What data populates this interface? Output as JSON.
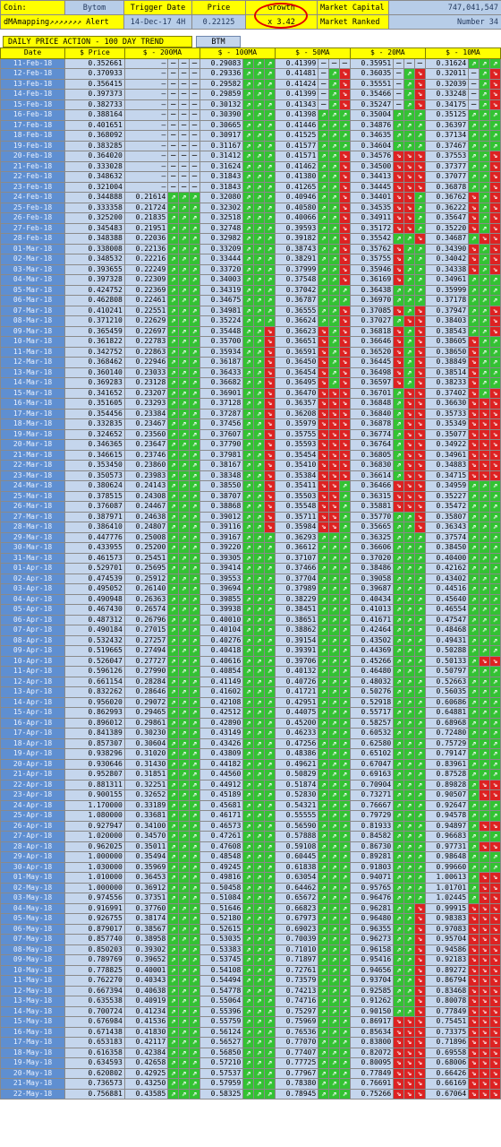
{
  "header": {
    "coin_label": "Coin:",
    "coin_value": "Bytom",
    "trigger_label": "Trigger Date",
    "trigger_value": "14-Dec-17 4H",
    "price_label": "Price",
    "price_value": "0.22125",
    "growth_label": "Growth",
    "growth_value": "x 3.42",
    "mcap_label": "Market Capital",
    "mcap_value": "747,041,547",
    "brand": "dMAmapping↗↗↗↗↗↗↗ Alert",
    "ranked_label": "Market Ranked",
    "ranked_value": "Number 34"
  },
  "section_title": "DAILY PRICE ACTION - 100 DAY TREND",
  "btm_tab": "BTM",
  "columns": [
    "Date",
    "$ Price",
    "$ - 200MA",
    "$ - 100MA",
    "$ - 50MA",
    "$ - 20MA",
    "$ - 10MA"
  ],
  "arrow_legend": {
    "u": "⇗",
    "d": "⇘",
    "n": "–"
  },
  "row_codes": "each row: [date, price, ma200, ma100, ma50, ma20, ma10, arrow-codes]; arrow-codes has 3 letters per MA column (200,100,50,20,10)",
  "rows": [
    [
      "11-Feb-18",
      "0.352661",
      "–",
      "0.29083",
      "0.41399",
      "0.35951",
      "0.31624",
      "nnnuuunnnnnnuuu"
    ],
    [
      "12-Feb-18",
      "0.370933",
      "–",
      "0.29336",
      "0.41481",
      "0.36035",
      "0.32011",
      "nnnuuunudnudnud"
    ],
    [
      "13-Feb-18",
      "0.356415",
      "–",
      "0.29582",
      "0.41424",
      "0.35551",
      "0.32039",
      "nnnuuunudnudnud"
    ],
    [
      "14-Feb-18",
      "0.397373",
      "–",
      "0.29859",
      "0.41399",
      "0.35466",
      "0.33248",
      "nnnuuunudnudnud"
    ],
    [
      "15-Feb-18",
      "0.382733",
      "–",
      "0.30132",
      "0.41343",
      "0.35247",
      "0.34175",
      "nnnuuunudnudnud"
    ],
    [
      "16-Feb-18",
      "0.388164",
      "–",
      "0.30390",
      "0.41398",
      "0.35004",
      "0.35125",
      "nnnuuuuuuuuuuuu"
    ],
    [
      "17-Feb-18",
      "0.401651",
      "–",
      "0.30665",
      "0.41446",
      "0.34876",
      "0.36397",
      "nnnuuuuuuuuuuuu"
    ],
    [
      "18-Feb-18",
      "0.368092",
      "–",
      "0.30917",
      "0.41525",
      "0.34635",
      "0.37134",
      "nnnuuuuuuuuuuuu"
    ],
    [
      "19-Feb-18",
      "0.383285",
      "–",
      "0.31167",
      "0.41577",
      "0.34604",
      "0.37467",
      "nnnuuuuuuuuuuuu"
    ],
    [
      "20-Feb-18",
      "0.364020",
      "–",
      "0.31412",
      "0.41571",
      "0.34576",
      "0.37553",
      "nnnuuuuudddduud"
    ],
    [
      "21-Feb-18",
      "0.333028",
      "–",
      "0.31624",
      "0.41462",
      "0.34500",
      "0.37377",
      "nnnuuuuudddduud"
    ],
    [
      "22-Feb-18",
      "0.348632",
      "–",
      "0.31843",
      "0.41380",
      "0.34413",
      "0.37077",
      "nnnuuuuudddduud"
    ],
    [
      "23-Feb-18",
      "0.321004",
      "–",
      "0.31843",
      "0.41265",
      "0.34445",
      "0.36878",
      "nnnuuuuudddduud"
    ],
    [
      "24-Feb-18",
      "0.344888",
      "0.21614",
      "0.32080",
      "0.40946",
      "0.34401",
      "0.36762",
      "uuuuuuuudddudud"
    ],
    [
      "25-Feb-18",
      "0.333358",
      "0.21724",
      "0.32302",
      "0.40580",
      "0.34535",
      "0.36222",
      "uuuuuuuudddudud"
    ],
    [
      "26-Feb-18",
      "0.325200",
      "0.21835",
      "0.32518",
      "0.40066",
      "0.34911",
      "0.35647",
      "uuuuuuuudddudud"
    ],
    [
      "27-Feb-18",
      "0.345483",
      "0.21951",
      "0.32748",
      "0.39593",
      "0.35172",
      "0.35220",
      "uuuuuuuudddudud"
    ],
    [
      "28-Feb-18",
      "0.348388",
      "0.22036",
      "0.32982",
      "0.39182",
      "0.35542",
      "0.34687",
      "uuuuuuuuduududd"
    ],
    [
      "01-Mar-18",
      "0.338008",
      "0.22136",
      "0.33209",
      "0.38743",
      "0.35762",
      "0.34390",
      "uuuuuuuudduudud"
    ],
    [
      "02-Mar-18",
      "0.348532",
      "0.22216",
      "0.33444",
      "0.38291",
      "0.35755",
      "0.34042",
      "uuuuuuuudduudud"
    ],
    [
      "03-Mar-18",
      "0.393655",
      "0.22249",
      "0.33720",
      "0.37999",
      "0.35946",
      "0.34338",
      "uuuuuuuudduudud"
    ],
    [
      "04-Mar-18",
      "0.397328",
      "0.22309",
      "0.34003",
      "0.37548",
      "0.36169",
      "0.34961",
      "uuuuuuuudduuuuu"
    ],
    [
      "05-Mar-18",
      "0.424752",
      "0.22369",
      "0.34319",
      "0.37042",
      "0.36438",
      "0.35999",
      "uuuuuuuuuuuuuuu"
    ],
    [
      "06-Mar-18",
      "0.462808",
      "0.22461",
      "0.34675",
      "0.36787",
      "0.36970",
      "0.37178",
      "uuuuuuuuuuuuuuu"
    ],
    [
      "07-Mar-18",
      "0.410241",
      "0.22551",
      "0.34981",
      "0.36555",
      "0.37085",
      "0.37947",
      "uuuuuuuudduduud"
    ],
    [
      "08-Mar-18",
      "0.371210",
      "0.22629",
      "0.35224",
      "0.36624",
      "0.37027",
      "0.38403",
      "uuuuuuuududduud"
    ],
    [
      "09-Mar-18",
      "0.365459",
      "0.22697",
      "0.35448",
      "0.36623",
      "0.36818",
      "0.38543",
      "uuuuuddudduduud"
    ],
    [
      "10-Mar-18",
      "0.361822",
      "0.22783",
      "0.35700",
      "0.36651",
      "0.36646",
      "0.38605",
      "uuuuudduddudduu"
    ],
    [
      "11-Mar-18",
      "0.342752",
      "0.22863",
      "0.35934",
      "0.36591",
      "0.36520",
      "0.38650",
      "uuuuudduddudduu"
    ],
    [
      "12-Mar-18",
      "0.368462",
      "0.22946",
      "0.36187",
      "0.36450",
      "0.36445",
      "0.38849",
      "uuuuudduddudduu"
    ],
    [
      "13-Mar-18",
      "0.360140",
      "0.23033",
      "0.36433",
      "0.36454",
      "0.36498",
      "0.38514",
      "uuuuudduddudduu"
    ],
    [
      "14-Mar-18",
      "0.369283",
      "0.23128",
      "0.36682",
      "0.36495",
      "0.36597",
      "0.38233",
      "uuuuudduddudduu"
    ],
    [
      "15-Mar-18",
      "0.341652",
      "0.23207",
      "0.36901",
      "0.36470",
      "0.36701",
      "0.37402",
      "uuuuuddddudddud"
    ],
    [
      "16-Mar-18",
      "0.351605",
      "0.23293",
      "0.37128",
      "0.36357",
      "0.36848",
      "0.36630",
      "uuuuudddduddddd"
    ],
    [
      "17-Mar-18",
      "0.354456",
      "0.23384",
      "0.37287",
      "0.36208",
      "0.36840",
      "0.35733",
      "uuuuudddduddddd"
    ],
    [
      "18-Mar-18",
      "0.332835",
      "0.23467",
      "0.37456",
      "0.35979",
      "0.36878",
      "0.35349",
      "uuuuudddduddddd"
    ],
    [
      "19-Mar-18",
      "0.324652",
      "0.23560",
      "0.37607",
      "0.35755",
      "0.36774",
      "0.35077",
      "uuuuudddduddddd"
    ],
    [
      "20-Mar-18",
      "0.346365",
      "0.23647",
      "0.37790",
      "0.35593",
      "0.36764",
      "0.34922",
      "uuuuudddduddddd"
    ],
    [
      "21-Mar-18",
      "0.346615",
      "0.23746",
      "0.37981",
      "0.35454",
      "0.36805",
      "0.34961",
      "uuuuudddduddddd"
    ],
    [
      "22-Mar-18",
      "0.353450",
      "0.23860",
      "0.38167",
      "0.35410",
      "0.36830",
      "0.34883",
      "uuuuudddduddddd"
    ],
    [
      "23-Mar-18",
      "0.350573",
      "0.23983",
      "0.38348",
      "0.35384",
      "0.36614",
      "0.34715",
      "uuuuudddduddddd"
    ],
    [
      "24-Mar-18",
      "0.380624",
      "0.24143",
      "0.38550",
      "0.35411",
      "0.36466",
      "0.34959",
      "uuuuuddduddduuu"
    ],
    [
      "25-Mar-18",
      "0.378515",
      "0.24308",
      "0.38707",
      "0.35503",
      "0.36315",
      "0.35227",
      "uuuuuddduddduuu"
    ],
    [
      "26-Mar-18",
      "0.376087",
      "0.24467",
      "0.38868",
      "0.35548",
      "0.35881",
      "0.35472",
      "uuuuuddduddduuu"
    ],
    [
      "27-Mar-18",
      "0.387971",
      "0.24638",
      "0.39012",
      "0.35711",
      "0.35770",
      "0.35807",
      "uuuuuddduuuduuu"
    ],
    [
      "28-Mar-18",
      "0.386410",
      "0.24807",
      "0.39116",
      "0.35984",
      "0.35665",
      "0.36343",
      "uuuuuddduuuduuu"
    ],
    [
      "29-Mar-18",
      "0.447776",
      "0.25008",
      "0.39167",
      "0.36293",
      "0.36325",
      "0.37574",
      "uuuuuuuuuuuuuuu"
    ],
    [
      "30-Mar-18",
      "0.433955",
      "0.25200",
      "0.39220",
      "0.36612",
      "0.36606",
      "0.38450",
      "uuuuuuuuuuuuuuu"
    ],
    [
      "31-Mar-18",
      "0.461573",
      "0.25451",
      "0.39305",
      "0.37107",
      "0.37020",
      "0.40400",
      "uuuuuuuuuuuuuuu"
    ],
    [
      "01-Apr-18",
      "0.529701",
      "0.25695",
      "0.39414",
      "0.37466",
      "0.38486",
      "0.42162",
      "uuuuuuuuuuuuuuu"
    ],
    [
      "02-Apr-18",
      "0.474539",
      "0.25912",
      "0.39553",
      "0.37704",
      "0.39058",
      "0.43402",
      "uuuuuuuuuuuuuuu"
    ],
    [
      "03-Apr-18",
      "0.495052",
      "0.26140",
      "0.39694",
      "0.37989",
      "0.39687",
      "0.44516",
      "uuuuuuuuuuuuuuu"
    ],
    [
      "04-Apr-18",
      "0.490948",
      "0.26363",
      "0.39855",
      "0.38229",
      "0.40434",
      "0.45640",
      "uuuuuuuuuuuuuuu"
    ],
    [
      "05-Apr-18",
      "0.467430",
      "0.26574",
      "0.39938",
      "0.38451",
      "0.41013",
      "0.46554",
      "uuuuuuuuuuuuuuu"
    ],
    [
      "06-Apr-18",
      "0.487312",
      "0.26796",
      "0.40010",
      "0.38651",
      "0.41671",
      "0.47547",
      "uuuuuuuuuuuuuuu"
    ],
    [
      "07-Apr-18",
      "0.490184",
      "0.27015",
      "0.40104",
      "0.38862",
      "0.42464",
      "0.48468",
      "uuuuuuuuuuuuuuu"
    ],
    [
      "08-Apr-18",
      "0.532432",
      "0.27257",
      "0.40276",
      "0.39154",
      "0.43502",
      "0.49431",
      "uuuuuuuuuuuuuuu"
    ],
    [
      "09-Apr-18",
      "0.519665",
      "0.27494",
      "0.40418",
      "0.39391",
      "0.44369",
      "0.50288",
      "uuuuuuuuuuuuuuu"
    ],
    [
      "10-Apr-18",
      "0.526047",
      "0.27727",
      "0.40616",
      "0.39706",
      "0.45266",
      "0.50133",
      "uuuuuuuuuuuuudd"
    ],
    [
      "11-Apr-18",
      "0.596126",
      "0.27990",
      "0.40854",
      "0.40132",
      "0.46480",
      "0.50797",
      "uuuuuuuuuuuuuuu"
    ],
    [
      "12-Apr-18",
      "0.661154",
      "0.28284",
      "0.41149",
      "0.40726",
      "0.48032",
      "0.52663",
      "uuuuuuuuuuuuuuu"
    ],
    [
      "13-Apr-18",
      "0.832262",
      "0.28646",
      "0.41602",
      "0.41721",
      "0.50276",
      "0.56035",
      "uuuuuuuuuuuuuuu"
    ],
    [
      "14-Apr-18",
      "0.956020",
      "0.29072",
      "0.42108",
      "0.42951",
      "0.52918",
      "0.60686",
      "uuuuuuuuuuuuuuu"
    ],
    [
      "15-Apr-18",
      "0.862993",
      "0.29465",
      "0.42512",
      "0.44075",
      "0.55717",
      "0.64881",
      "uuuuuuuuuuuuuuu"
    ],
    [
      "16-Apr-18",
      "0.896012",
      "0.29861",
      "0.42890",
      "0.45200",
      "0.58257",
      "0.68968",
      "uuuuuuuuuuuuuuu"
    ],
    [
      "17-Apr-18",
      "0.841389",
      "0.30230",
      "0.43149",
      "0.46233",
      "0.60532",
      "0.72480",
      "uuuuuuuuuuuuuuu"
    ],
    [
      "18-Apr-18",
      "0.857307",
      "0.30604",
      "0.43426",
      "0.47256",
      "0.62580",
      "0.75729",
      "uuuuuuuuuuuuuuu"
    ],
    [
      "19-Apr-18",
      "0.938296",
      "0.31020",
      "0.43809",
      "0.48386",
      "0.65102",
      "0.79147",
      "uuuuuuuuuuuuuuu"
    ],
    [
      "20-Apr-18",
      "0.930646",
      "0.31430",
      "0.44182",
      "0.49621",
      "0.67047",
      "0.83961",
      "uuuuuuuuuuuuuuu"
    ],
    [
      "21-Apr-18",
      "0.952807",
      "0.31851",
      "0.44560",
      "0.50829",
      "0.69163",
      "0.87528",
      "uuuuuuuuuuuuuuu"
    ],
    [
      "22-Apr-18",
      "0.881311",
      "0.32251",
      "0.44912",
      "0.51874",
      "0.70904",
      "0.89828",
      "uuuuuuuuuuuuudd"
    ],
    [
      "23-Apr-18",
      "0.900155",
      "0.32652",
      "0.45189",
      "0.52830",
      "0.73271",
      "0.90507",
      "uuuuuuuuuuuuudd"
    ],
    [
      "24-Apr-18",
      "1.170000",
      "0.33189",
      "0.45681",
      "0.54321",
      "0.76667",
      "0.92647",
      "uuuuuuuuuuuuuuu"
    ],
    [
      "25-Apr-18",
      "1.080000",
      "0.33681",
      "0.46171",
      "0.55555",
      "0.79729",
      "0.94578",
      "uuuuuuuuuuuuuuu"
    ],
    [
      "26-Apr-18",
      "0.927947",
      "0.34100",
      "0.46573",
      "0.56590",
      "0.81933",
      "0.94897",
      "uuuuuuuuuuuuudd"
    ],
    [
      "27-Apr-18",
      "1.020000",
      "0.34570",
      "0.47261",
      "0.57888",
      "0.84582",
      "0.96683",
      "uuuuuuuuuuuuuuu"
    ],
    [
      "28-Apr-18",
      "0.962025",
      "0.35011",
      "0.47608",
      "0.59108",
      "0.86730",
      "0.97731",
      "uuuuuuuuuuuuudd"
    ],
    [
      "29-Apr-18",
      "1.000000",
      "0.35494",
      "0.48548",
      "0.60445",
      "0.89281",
      "0.98648",
      "uuuuuuuuuuuuuuu"
    ],
    [
      "30-Apr-18",
      "1.030000",
      "0.35969",
      "0.49245",
      "0.61838",
      "0.91803",
      "0.99660",
      "uuuuuuuuuuuuuuu"
    ],
    [
      "01-May-18",
      "1.010000",
      "0.36453",
      "0.49816",
      "0.63054",
      "0.94071",
      "1.00613",
      "uuuuuuuuuuuuudd"
    ],
    [
      "02-May-18",
      "1.000000",
      "0.36912",
      "0.50458",
      "0.64462",
      "0.95765",
      "1.01701",
      "uuuuuuuuuuuuudd"
    ],
    [
      "03-May-18",
      "0.974556",
      "0.37351",
      "0.51084",
      "0.65672",
      "0.96476",
      "1.02445",
      "uuuuuuuuuuuuudd"
    ],
    [
      "04-May-18",
      "0.916991",
      "0.37760",
      "0.51646",
      "0.66823",
      "0.96281",
      "0.99915",
      "uuuuuuuuuuudddd"
    ],
    [
      "05-May-18",
      "0.926755",
      "0.38174",
      "0.52180",
      "0.67973",
      "0.96480",
      "0.98383",
      "uuuuuuuuuuudddd"
    ],
    [
      "06-May-18",
      "0.879017",
      "0.38567",
      "0.52615",
      "0.69023",
      "0.96355",
      "0.97083",
      "uuuuuuuuuuudddd"
    ],
    [
      "07-May-18",
      "0.857740",
      "0.38958",
      "0.53035",
      "0.70039",
      "0.96273",
      "0.95704",
      "uuuuuuuuuuudddd"
    ],
    [
      "08-May-18",
      "0.850203",
      "0.39302",
      "0.53383",
      "0.71010",
      "0.96158",
      "0.94586",
      "uuuuuuuuuuudddd"
    ],
    [
      "09-May-18",
      "0.789769",
      "0.39652",
      "0.53745",
      "0.71897",
      "0.95416",
      "0.92183",
      "uuuuuuuuuuudddd"
    ],
    [
      "10-May-18",
      "0.778825",
      "0.40001",
      "0.54108",
      "0.72761",
      "0.94656",
      "0.89272",
      "uuuuuuuuuuudddd"
    ],
    [
      "11-May-18",
      "0.762270",
      "0.40343",
      "0.54494",
      "0.73579",
      "0.93704",
      "0.86794",
      "uuuuuuuuuuudddd"
    ],
    [
      "12-May-18",
      "0.667394",
      "0.40638",
      "0.54778",
      "0.74213",
      "0.92585",
      "0.83468",
      "uuuuuuuuuuudddd"
    ],
    [
      "13-May-18",
      "0.635538",
      "0.40919",
      "0.55064",
      "0.74716",
      "0.91262",
      "0.80078",
      "uuuuuuuuuuudddd"
    ],
    [
      "14-May-18",
      "0.700724",
      "0.41234",
      "0.55396",
      "0.75297",
      "0.90150",
      "0.77849",
      "uuuuuuuuuuudddd"
    ],
    [
      "15-May-18",
      "0.676984",
      "0.41536",
      "0.55759",
      "0.75969",
      "0.86917",
      "0.75451",
      "uuuuuuuuudddddd"
    ],
    [
      "16-May-18",
      "0.671438",
      "0.41830",
      "0.56124",
      "0.76536",
      "0.85634",
      "0.73375",
      "uuuuuuuuudddddd"
    ],
    [
      "17-May-18",
      "0.653183",
      "0.42117",
      "0.56527",
      "0.77070",
      "0.83800",
      "0.71896",
      "uuuuuuuuudddddd"
    ],
    [
      "18-May-18",
      "0.616358",
      "0.42384",
      "0.56850",
      "0.77407",
      "0.82072",
      "0.69558",
      "uuuuuuuuudddddd"
    ],
    [
      "19-May-18",
      "0.634593",
      "0.42658",
      "0.57210",
      "0.77725",
      "0.80095",
      "0.68006",
      "uuuuuuuuudddddd"
    ],
    [
      "20-May-18",
      "0.620802",
      "0.42925",
      "0.57537",
      "0.77967",
      "0.77849",
      "0.66426",
      "uuuuuuuuudddddd"
    ],
    [
      "21-May-18",
      "0.736573",
      "0.43250",
      "0.57959",
      "0.78380",
      "0.76691",
      "0.66169",
      "uuuuuuuuudddddd"
    ],
    [
      "22-May-18",
      "0.756881",
      "0.43585",
      "0.58325",
      "0.78945",
      "0.75266",
      "0.67064",
      "uuuuuuuuudddddd"
    ]
  ]
}
